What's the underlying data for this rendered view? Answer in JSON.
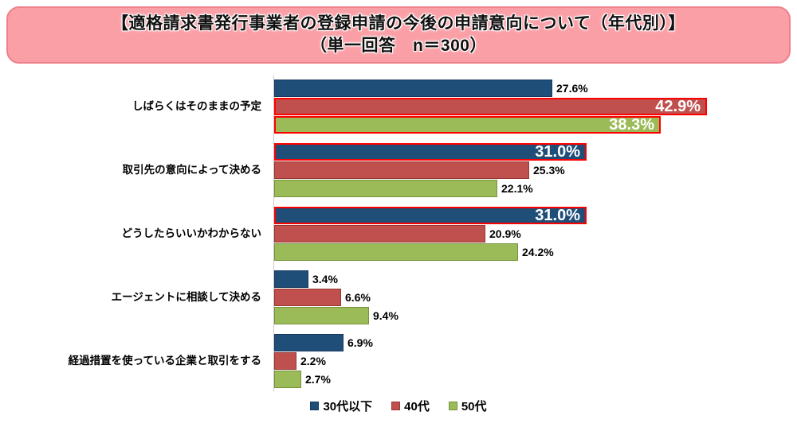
{
  "header": {
    "title_line1": "【適格請求書発行事業者の登録申請の今後の申請意向について（年代別）】",
    "title_line2": "（単一回答　n＝300）",
    "box_fill": "#FA9FA6",
    "box_border": "#F0808B"
  },
  "chart_data": {
    "type": "bar",
    "orientation": "horizontal",
    "title": "【適格請求書発行事業者の登録申請の今後の申請意向について（年代別）】（単一回答 n＝300）",
    "unit": "%",
    "categories": [
      "しばらくはそのままの予定",
      "取引先の意向によって決める",
      "どうしたらいいかわからない",
      "エージェントに相談して決める",
      "経過措置を使っている企業と取引をする"
    ],
    "series": [
      {
        "name": "30代以下",
        "color": "#1F4E79",
        "border_color": "#17375E",
        "values": [
          27.6,
          31.0,
          31.0,
          3.4,
          6.9
        ]
      },
      {
        "name": "40代",
        "color": "#C0504D",
        "border_color": "#953735",
        "values": [
          42.9,
          25.3,
          20.9,
          6.6,
          2.2
        ]
      },
      {
        "name": "50代",
        "color": "#9BBB59",
        "border_color": "#77933C",
        "values": [
          38.3,
          22.1,
          24.2,
          9.4,
          2.7
        ]
      }
    ],
    "labels": [
      [
        "27.6%",
        "31.0%",
        "31.0%",
        "3.4%",
        "6.9%"
      ],
      [
        "42.9%",
        "25.3%",
        "20.9%",
        "6.6%",
        "2.2%"
      ],
      [
        "38.3%",
        "22.1%",
        "24.2%",
        "9.4%",
        "2.7%"
      ]
    ],
    "highlighted_bars": [
      {
        "category_index": 0,
        "series_index": 1,
        "label": "42.9%"
      },
      {
        "category_index": 0,
        "series_index": 2,
        "label": "38.3%"
      },
      {
        "category_index": 1,
        "series_index": 0,
        "label": "31.0%"
      },
      {
        "category_index": 2,
        "series_index": 0,
        "label": "31.0%"
      }
    ],
    "highlight_border_color": "#FF0000",
    "axis": {
      "baseline_color": "#C8C8C8",
      "xmin": 0,
      "xmax_visible": 51,
      "gridlines": false
    },
    "legend_position": "bottom-center",
    "legend_entries": [
      "30代以下",
      "40代",
      "50代"
    ]
  }
}
